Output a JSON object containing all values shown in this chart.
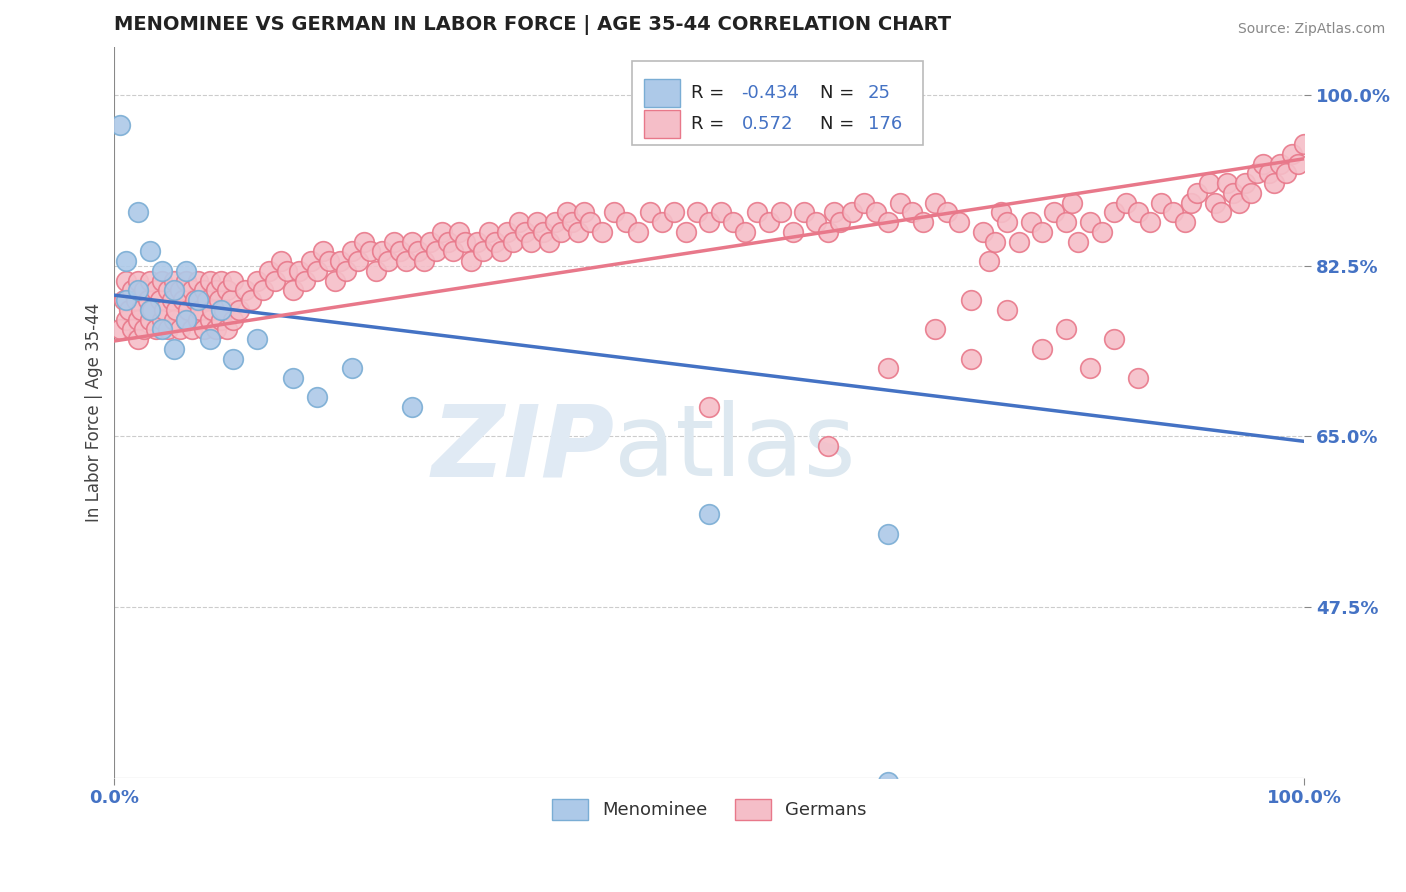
{
  "title": "MENOMINEE VS GERMAN IN LABOR FORCE | AGE 35-44 CORRELATION CHART",
  "source_text": "Source: ZipAtlas.com",
  "ylabel": "In Labor Force | Age 35-44",
  "xlim": [
    0.0,
    1.0
  ],
  "ylim": [
    0.3,
    1.05
  ],
  "yticks": [
    0.475,
    0.65,
    0.825,
    1.0
  ],
  "ytick_labels": [
    "47.5%",
    "65.0%",
    "82.5%",
    "100.0%"
  ],
  "xticks": [
    0.0,
    1.0
  ],
  "xtick_labels": [
    "0.0%",
    "100.0%"
  ],
  "menominee_R": -0.434,
  "menominee_N": 25,
  "german_R": 0.572,
  "german_N": 176,
  "menominee_color": "#adc9e8",
  "menominee_edge_color": "#7aadd4",
  "menominee_line_color": "#4472c4",
  "german_color": "#f5bec8",
  "german_edge_color": "#e8788a",
  "german_line_color": "#e8788a",
  "background_color": "#ffffff",
  "grid_color": "#cccccc",
  "tick_color": "#4472c4",
  "menominee_scatter": [
    [
      0.005,
      0.97
    ],
    [
      0.01,
      0.79
    ],
    [
      0.01,
      0.83
    ],
    [
      0.02,
      0.88
    ],
    [
      0.02,
      0.8
    ],
    [
      0.03,
      0.84
    ],
    [
      0.03,
      0.78
    ],
    [
      0.04,
      0.82
    ],
    [
      0.04,
      0.76
    ],
    [
      0.05,
      0.8
    ],
    [
      0.05,
      0.74
    ],
    [
      0.06,
      0.82
    ],
    [
      0.06,
      0.77
    ],
    [
      0.07,
      0.79
    ],
    [
      0.08,
      0.75
    ],
    [
      0.09,
      0.78
    ],
    [
      0.1,
      0.73
    ],
    [
      0.12,
      0.75
    ],
    [
      0.15,
      0.71
    ],
    [
      0.17,
      0.69
    ],
    [
      0.2,
      0.72
    ],
    [
      0.25,
      0.68
    ],
    [
      0.5,
      0.57
    ],
    [
      0.65,
      0.55
    ],
    [
      0.65,
      0.295
    ]
  ],
  "german_scatter": [
    [
      0.005,
      0.76
    ],
    [
      0.008,
      0.79
    ],
    [
      0.01,
      0.77
    ],
    [
      0.01,
      0.81
    ],
    [
      0.012,
      0.78
    ],
    [
      0.015,
      0.8
    ],
    [
      0.015,
      0.76
    ],
    [
      0.018,
      0.79
    ],
    [
      0.02,
      0.77
    ],
    [
      0.02,
      0.81
    ],
    [
      0.02,
      0.75
    ],
    [
      0.022,
      0.78
    ],
    [
      0.025,
      0.8
    ],
    [
      0.025,
      0.76
    ],
    [
      0.028,
      0.79
    ],
    [
      0.03,
      0.77
    ],
    [
      0.03,
      0.81
    ],
    [
      0.032,
      0.78
    ],
    [
      0.035,
      0.8
    ],
    [
      0.035,
      0.76
    ],
    [
      0.038,
      0.79
    ],
    [
      0.04,
      0.77
    ],
    [
      0.04,
      0.81
    ],
    [
      0.042,
      0.78
    ],
    [
      0.045,
      0.8
    ],
    [
      0.045,
      0.76
    ],
    [
      0.048,
      0.79
    ],
    [
      0.05,
      0.77
    ],
    [
      0.05,
      0.81
    ],
    [
      0.052,
      0.78
    ],
    [
      0.055,
      0.8
    ],
    [
      0.055,
      0.76
    ],
    [
      0.058,
      0.79
    ],
    [
      0.06,
      0.77
    ],
    [
      0.06,
      0.81
    ],
    [
      0.062,
      0.78
    ],
    [
      0.065,
      0.8
    ],
    [
      0.065,
      0.76
    ],
    [
      0.068,
      0.79
    ],
    [
      0.07,
      0.77
    ],
    [
      0.07,
      0.81
    ],
    [
      0.072,
      0.78
    ],
    [
      0.075,
      0.8
    ],
    [
      0.075,
      0.76
    ],
    [
      0.078,
      0.79
    ],
    [
      0.08,
      0.77
    ],
    [
      0.08,
      0.81
    ],
    [
      0.082,
      0.78
    ],
    [
      0.085,
      0.8
    ],
    [
      0.085,
      0.76
    ],
    [
      0.088,
      0.79
    ],
    [
      0.09,
      0.77
    ],
    [
      0.09,
      0.81
    ],
    [
      0.092,
      0.78
    ],
    [
      0.095,
      0.8
    ],
    [
      0.095,
      0.76
    ],
    [
      0.098,
      0.79
    ],
    [
      0.1,
      0.77
    ],
    [
      0.1,
      0.81
    ],
    [
      0.105,
      0.78
    ],
    [
      0.11,
      0.8
    ],
    [
      0.115,
      0.79
    ],
    [
      0.12,
      0.81
    ],
    [
      0.125,
      0.8
    ],
    [
      0.13,
      0.82
    ],
    [
      0.135,
      0.81
    ],
    [
      0.14,
      0.83
    ],
    [
      0.145,
      0.82
    ],
    [
      0.15,
      0.8
    ],
    [
      0.155,
      0.82
    ],
    [
      0.16,
      0.81
    ],
    [
      0.165,
      0.83
    ],
    [
      0.17,
      0.82
    ],
    [
      0.175,
      0.84
    ],
    [
      0.18,
      0.83
    ],
    [
      0.185,
      0.81
    ],
    [
      0.19,
      0.83
    ],
    [
      0.195,
      0.82
    ],
    [
      0.2,
      0.84
    ],
    [
      0.205,
      0.83
    ],
    [
      0.21,
      0.85
    ],
    [
      0.215,
      0.84
    ],
    [
      0.22,
      0.82
    ],
    [
      0.225,
      0.84
    ],
    [
      0.23,
      0.83
    ],
    [
      0.235,
      0.85
    ],
    [
      0.24,
      0.84
    ],
    [
      0.245,
      0.83
    ],
    [
      0.25,
      0.85
    ],
    [
      0.255,
      0.84
    ],
    [
      0.26,
      0.83
    ],
    [
      0.265,
      0.85
    ],
    [
      0.27,
      0.84
    ],
    [
      0.275,
      0.86
    ],
    [
      0.28,
      0.85
    ],
    [
      0.285,
      0.84
    ],
    [
      0.29,
      0.86
    ],
    [
      0.295,
      0.85
    ],
    [
      0.3,
      0.83
    ],
    [
      0.305,
      0.85
    ],
    [
      0.31,
      0.84
    ],
    [
      0.315,
      0.86
    ],
    [
      0.32,
      0.85
    ],
    [
      0.325,
      0.84
    ],
    [
      0.33,
      0.86
    ],
    [
      0.335,
      0.85
    ],
    [
      0.34,
      0.87
    ],
    [
      0.345,
      0.86
    ],
    [
      0.35,
      0.85
    ],
    [
      0.355,
      0.87
    ],
    [
      0.36,
      0.86
    ],
    [
      0.365,
      0.85
    ],
    [
      0.37,
      0.87
    ],
    [
      0.375,
      0.86
    ],
    [
      0.38,
      0.88
    ],
    [
      0.385,
      0.87
    ],
    [
      0.39,
      0.86
    ],
    [
      0.395,
      0.88
    ],
    [
      0.4,
      0.87
    ],
    [
      0.41,
      0.86
    ],
    [
      0.42,
      0.88
    ],
    [
      0.43,
      0.87
    ],
    [
      0.44,
      0.86
    ],
    [
      0.45,
      0.88
    ],
    [
      0.46,
      0.87
    ],
    [
      0.47,
      0.88
    ],
    [
      0.48,
      0.86
    ],
    [
      0.49,
      0.88
    ],
    [
      0.5,
      0.87
    ],
    [
      0.51,
      0.88
    ],
    [
      0.52,
      0.87
    ],
    [
      0.53,
      0.86
    ],
    [
      0.54,
      0.88
    ],
    [
      0.55,
      0.87
    ],
    [
      0.56,
      0.88
    ],
    [
      0.57,
      0.86
    ],
    [
      0.58,
      0.88
    ],
    [
      0.59,
      0.87
    ],
    [
      0.6,
      0.86
    ],
    [
      0.605,
      0.88
    ],
    [
      0.61,
      0.87
    ],
    [
      0.62,
      0.88
    ],
    [
      0.63,
      0.89
    ],
    [
      0.64,
      0.88
    ],
    [
      0.65,
      0.87
    ],
    [
      0.66,
      0.89
    ],
    [
      0.67,
      0.88
    ],
    [
      0.68,
      0.87
    ],
    [
      0.69,
      0.89
    ],
    [
      0.7,
      0.88
    ],
    [
      0.71,
      0.87
    ],
    [
      0.72,
      0.79
    ],
    [
      0.73,
      0.86
    ],
    [
      0.735,
      0.83
    ],
    [
      0.74,
      0.85
    ],
    [
      0.745,
      0.88
    ],
    [
      0.75,
      0.87
    ],
    [
      0.76,
      0.85
    ],
    [
      0.77,
      0.87
    ],
    [
      0.78,
      0.86
    ],
    [
      0.79,
      0.88
    ],
    [
      0.8,
      0.87
    ],
    [
      0.805,
      0.89
    ],
    [
      0.81,
      0.85
    ],
    [
      0.82,
      0.87
    ],
    [
      0.83,
      0.86
    ],
    [
      0.84,
      0.88
    ],
    [
      0.85,
      0.89
    ],
    [
      0.86,
      0.88
    ],
    [
      0.87,
      0.87
    ],
    [
      0.88,
      0.89
    ],
    [
      0.89,
      0.88
    ],
    [
      0.9,
      0.87
    ],
    [
      0.905,
      0.89
    ],
    [
      0.91,
      0.9
    ],
    [
      0.92,
      0.91
    ],
    [
      0.925,
      0.89
    ],
    [
      0.93,
      0.88
    ],
    [
      0.935,
      0.91
    ],
    [
      0.94,
      0.9
    ],
    [
      0.945,
      0.89
    ],
    [
      0.95,
      0.91
    ],
    [
      0.955,
      0.9
    ],
    [
      0.96,
      0.92
    ],
    [
      0.965,
      0.93
    ],
    [
      0.97,
      0.92
    ],
    [
      0.975,
      0.91
    ],
    [
      0.98,
      0.93
    ],
    [
      0.985,
      0.92
    ],
    [
      0.99,
      0.94
    ],
    [
      0.995,
      0.93
    ],
    [
      1.0,
      0.95
    ],
    [
      0.69,
      0.76
    ],
    [
      0.72,
      0.73
    ],
    [
      0.75,
      0.78
    ],
    [
      0.78,
      0.74
    ],
    [
      0.8,
      0.76
    ],
    [
      0.82,
      0.72
    ],
    [
      0.84,
      0.75
    ],
    [
      0.86,
      0.71
    ],
    [
      0.65,
      0.72
    ],
    [
      0.5,
      0.68
    ],
    [
      0.6,
      0.64
    ]
  ]
}
